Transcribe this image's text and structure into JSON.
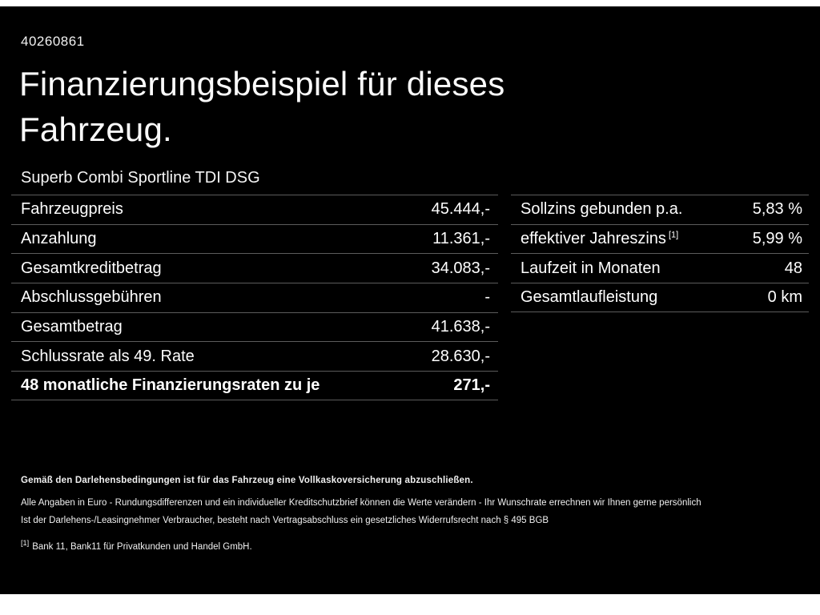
{
  "header": {
    "id": "40260861",
    "title_line1": "Finanzierungsbeispiel für dieses",
    "title_line2": "Fahrzeug.",
    "subtitle": "Superb Combi Sportline TDI DSG"
  },
  "left_table": {
    "rows": [
      {
        "label": "Fahrzeugpreis",
        "value": "45.444,-"
      },
      {
        "label": "Anzahlung",
        "value": "11.361,-"
      },
      {
        "label": "Gesamtkreditbetrag",
        "value": "34.083,-"
      },
      {
        "label": "Abschlussgebühren",
        "value": "-"
      },
      {
        "label": "Gesamtbetrag",
        "value": "41.638,-"
      },
      {
        "label": "Schlussrate als 49. Rate",
        "value": "28.630,-"
      },
      {
        "label": "48 monatliche Finanzierungsraten zu je",
        "value": "271,-",
        "bold": true
      }
    ]
  },
  "right_table": {
    "rows": [
      {
        "label": "Sollzins gebunden p.a.",
        "value": "5,83 %"
      },
      {
        "label": "effektiver Jahreszins",
        "sup": "[1]",
        "value": "5,99 %"
      },
      {
        "label": "Laufzeit in Monaten",
        "value": "48"
      },
      {
        "label": "Gesamtlaufleistung",
        "value": "0 km"
      }
    ]
  },
  "footer": {
    "insurance_note": "Gemäß den Darlehensbedingungen ist für das Fahrzeug eine Vollkaskoversicherung abzuschließen.",
    "disclaimer_line1": "Alle Angaben in Euro - Rundungsdifferenzen und ein individueller Kreditschutzbrief können die Werte verändern - Ihr Wunschrate errechnen wir Ihnen gerne persönlich",
    "disclaimer_line2": "Ist der Darlehens-/Leasingnehmer Verbraucher, besteht nach Vertragsabschluss ein gesetzliches Widerrufsrecht nach § 495 BGB",
    "ref_marker": "[1]",
    "ref_text": "Bank 11, Bank11 für Privatkunden und Handel GmbH."
  },
  "colors": {
    "background": "#000000",
    "text": "#ffffff",
    "divider": "#5c5c5c",
    "frame": "#ffffff"
  }
}
